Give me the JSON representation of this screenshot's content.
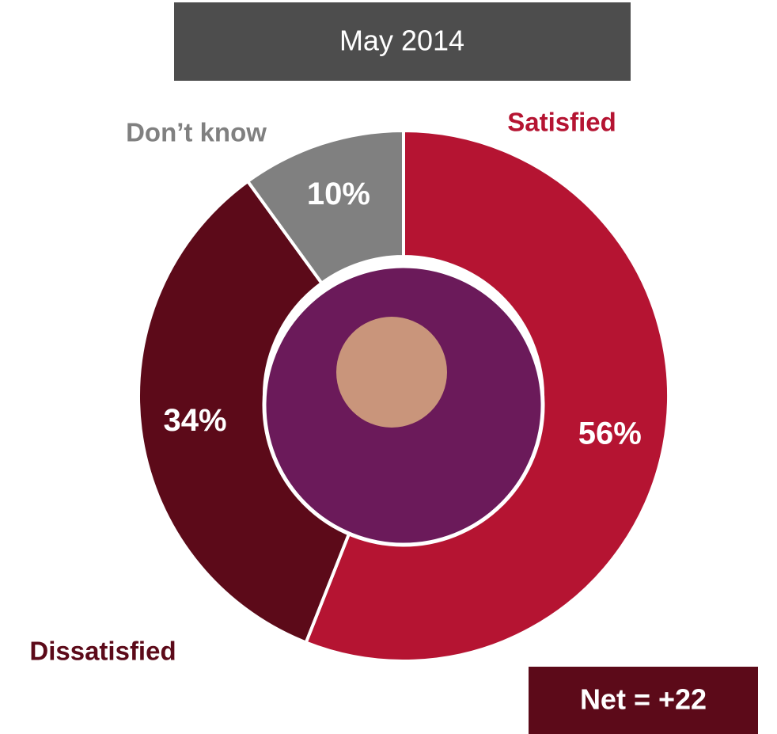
{
  "chart_data": {
    "type": "donut",
    "title": "May 2014",
    "categories": [
      "Satisfied",
      "Dissatisfied",
      "Don’t know"
    ],
    "values": [
      56,
      34,
      10
    ],
    "value_labels": [
      "56%",
      "34%",
      "10%"
    ],
    "colors": [
      "#b51432",
      "#5c0a19",
      "#808080"
    ],
    "annotation": "Net = +22"
  }
}
